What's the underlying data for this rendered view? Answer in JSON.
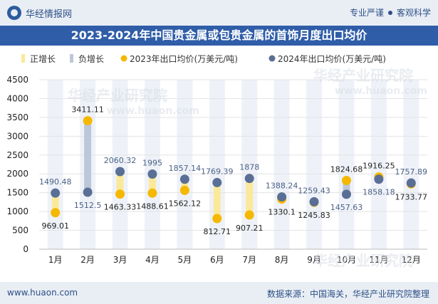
{
  "header": {
    "brand": "华经情报网",
    "slogan_left": "专业严谨",
    "slogan_right": "客观科学"
  },
  "chart_title": "2023-2024年中国贵金属或包贵金属的首饰月度出口均价",
  "footer": {
    "website": "www.huaon.com",
    "source": "数据来源：中国海关，华经产业研究院整理"
  },
  "watermark": {
    "text_cn": "华经产业研究院",
    "text_en": "www.huaon.com"
  },
  "colors": {
    "increase": "#fbe99a",
    "decrease": "#bcc7d9",
    "series_2023": "#f5b800",
    "series_2024": "#5a6f96",
    "header_bg": "#2f5da8",
    "grid": "#e3e3e3",
    "highlight": "#eef2f8"
  },
  "chart_data": {
    "type": "line",
    "categories": [
      "1月",
      "2月",
      "3月",
      "4月",
      "5月",
      "6月",
      "7月",
      "8月",
      "9月",
      "10月",
      "11月",
      "12月"
    ],
    "series": [
      {
        "name": "2023年出口均价(万美元/吨)",
        "values": [
          969.01,
          3411.11,
          1463.33,
          1488.61,
          1562.12,
          812.71,
          907.21,
          1330.1,
          1245.83,
          1824.68,
          1916.25,
          1733.77
        ]
      },
      {
        "name": "2024年出口均价(万美元/吨)",
        "values": [
          1490.48,
          1512.5,
          2060.32,
          1995,
          1857.14,
          1769.39,
          1878,
          1388.24,
          1259.43,
          1457.63,
          1858.18,
          1757.89
        ]
      }
    ],
    "legend": [
      "正增长",
      "负增长",
      "2023年出口均价(万美元/吨)",
      "2024年出口均价(万美元/吨)"
    ],
    "labels_2023": [
      "969.01",
      "3411.11",
      "1463.33",
      "1488.61",
      "1562.12",
      "812.71",
      "907.21",
      "1330.1",
      "1245.83",
      "1824.68",
      "1916.25",
      "1733.77"
    ],
    "labels_2024": [
      "1490.48",
      "1512.5",
      "2060.32",
      "1995",
      "1857.14",
      "1769.39",
      "1878",
      "1388.24",
      "1259.43",
      "1457.63",
      "1858.18",
      "1757.89"
    ],
    "yticks": [
      "0",
      "500",
      "1000",
      "1500",
      "2000",
      "2500",
      "3000",
      "3500",
      "4000",
      "4500"
    ],
    "ylim": [
      0,
      4500
    ],
    "title": "2023-2024年中国贵金属或包贵金属的首饰月度出口均价"
  }
}
